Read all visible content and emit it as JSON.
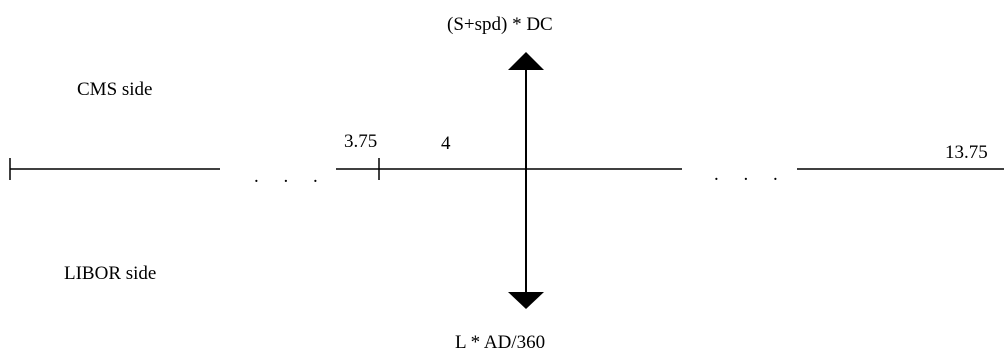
{
  "top_label": "(S+spd) * DC",
  "bottom_label": "L * AD/360",
  "cms_side_label": "CMS side",
  "libor_side_label": "LIBOR side",
  "timeline": {
    "start_label": "3.75",
    "center_label": "4",
    "end_label": "13.75",
    "ellipsis_left": ". . .",
    "ellipsis_right": ". . ."
  },
  "colors": {
    "line": "#000000",
    "background": "#ffffff"
  }
}
